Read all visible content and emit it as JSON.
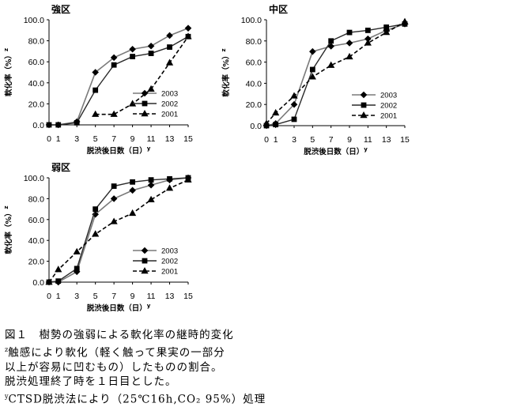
{
  "chart_data": [
    {
      "type": "line",
      "title": "強区",
      "xlabel": "脱渋後日数（日）",
      "xlabel_note": "y",
      "ylabel": "軟化率（%）",
      "ylabel_note": "z",
      "x": [
        0,
        1,
        3,
        5,
        7,
        9,
        11,
        13,
        15
      ],
      "ylim": [
        0,
        100
      ],
      "yticks": [
        "0.0",
        "20.0",
        "40.0",
        "60.0",
        "80.0",
        "100.0"
      ],
      "legend_position": "lower-right",
      "series": [
        {
          "name": "2003",
          "marker": "diamond",
          "line": "solid-gray",
          "values": [
            0,
            0,
            3,
            50,
            64,
            72,
            75,
            85,
            92
          ]
        },
        {
          "name": "2002",
          "marker": "square",
          "line": "solid-dark",
          "values": [
            0,
            0,
            2,
            33,
            57,
            65,
            68,
            74,
            84
          ]
        },
        {
          "name": "2001",
          "marker": "triangle",
          "line": "dashed",
          "values": [
            null,
            null,
            null,
            10,
            10,
            20,
            34,
            59,
            84
          ]
        }
      ]
    },
    {
      "type": "line",
      "title": "中区",
      "xlabel": "脱渋後日数（日）",
      "xlabel_note": "y",
      "ylabel": "軟化率（%）",
      "ylabel_note": "z",
      "x": [
        0,
        1,
        3,
        5,
        7,
        9,
        11,
        13,
        15
      ],
      "ylim": [
        0,
        100
      ],
      "yticks": [
        "0.0",
        "20.0",
        "40.0",
        "60.0",
        "80.0",
        "100.0"
      ],
      "legend_position": "lower-right",
      "series": [
        {
          "name": "2003",
          "marker": "diamond",
          "line": "solid-gray",
          "values": [
            0,
            2,
            20,
            70,
            75,
            78,
            82,
            90,
            96
          ]
        },
        {
          "name": "2002",
          "marker": "square",
          "line": "solid-dark",
          "values": [
            0,
            1,
            6,
            53,
            80,
            88,
            90,
            93,
            96
          ]
        },
        {
          "name": "2001",
          "marker": "triangle",
          "line": "dashed",
          "values": [
            2,
            12,
            28,
            46,
            57,
            65,
            78,
            88,
            98
          ]
        }
      ]
    },
    {
      "type": "line",
      "title": "弱区",
      "xlabel": "脱渋後日数（日）",
      "xlabel_note": "y",
      "ylabel": "軟化率（%）",
      "ylabel_note": "z",
      "x": [
        0,
        1,
        3,
        5,
        7,
        9,
        11,
        13,
        15
      ],
      "ylim": [
        0,
        100
      ],
      "yticks": [
        "0.0",
        "20.0",
        "40.0",
        "60.0",
        "80.0",
        "100.0"
      ],
      "legend_position": "lower-right",
      "series": [
        {
          "name": "2003",
          "marker": "diamond",
          "line": "solid-gray",
          "values": [
            0,
            0,
            10,
            65,
            80,
            88,
            93,
            98,
            100
          ]
        },
        {
          "name": "2002",
          "marker": "square",
          "line": "solid-dark",
          "values": [
            0,
            1,
            13,
            70,
            92,
            96,
            98,
            99,
            100
          ]
        },
        {
          "name": "2001",
          "marker": "triangle",
          "line": "dashed",
          "values": [
            0,
            12,
            29,
            46,
            58,
            66,
            79,
            90,
            98
          ]
        }
      ]
    }
  ],
  "caption": {
    "line1": "図１　樹勢の強弱による軟化率の継時的変化",
    "line2_note": "z",
    "line2": "触感により軟化（軽く触って果実の一部分",
    "line3": "以上が容易に凹むもの）したものの割合。",
    "line4": "脱渋処理終了時を１日目とした。",
    "line5_note": "y",
    "line5": "CTSD脱渋法により（25℃16h,CO₂ 95%）処理"
  },
  "colors": {
    "s2003": "#7a7a7a",
    "s2002": "#2a2a2a",
    "s2001": "#000000",
    "marker": "#000000",
    "axis": "#000000"
  }
}
